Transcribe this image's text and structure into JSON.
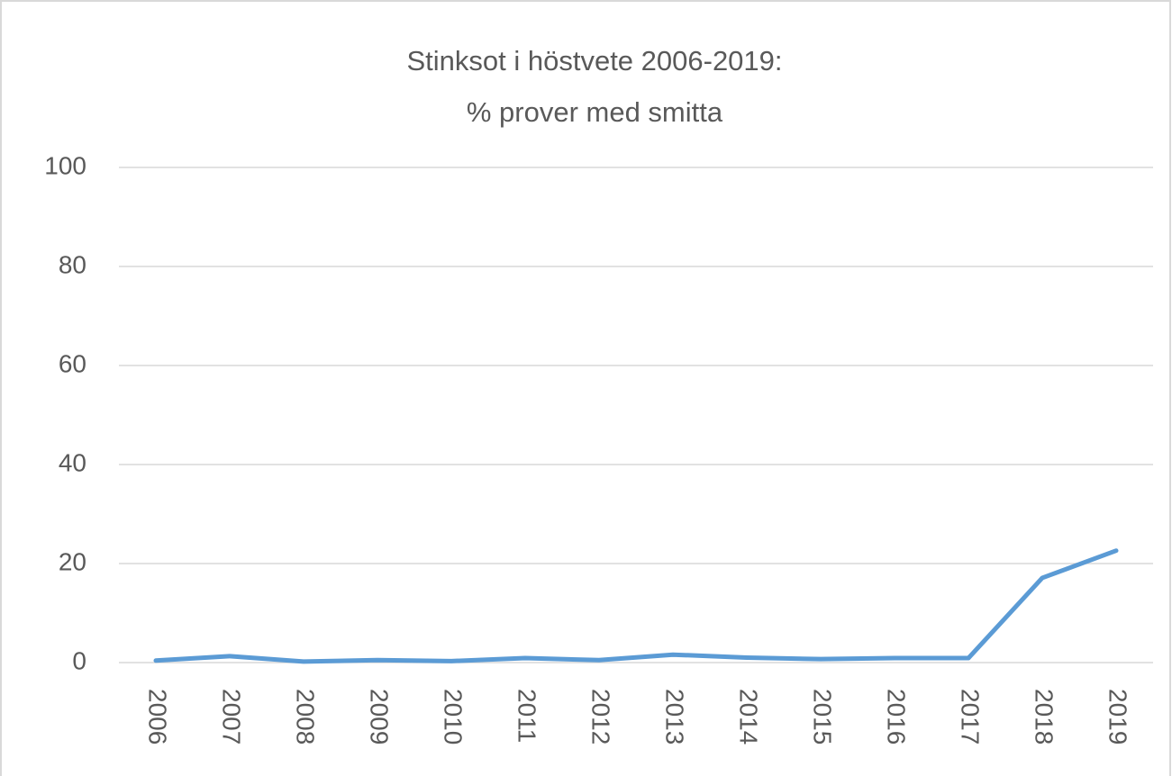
{
  "chart_data": {
    "type": "line",
    "title": "Stinksot i höstvete 2006-2019:",
    "subtitle": "% prover med smitta",
    "categories": [
      "2006",
      "2007",
      "2008",
      "2009",
      "2010",
      "2011",
      "2012",
      "2013",
      "2014",
      "2015",
      "2016",
      "2017",
      "2018",
      "2019"
    ],
    "series": [
      {
        "name": "% prover med smitta",
        "color": "#5b9bd5",
        "values": [
          0.4,
          1.3,
          0.2,
          0.5,
          0.3,
          0.9,
          0.5,
          1.6,
          1.0,
          0.7,
          0.9,
          0.9,
          17.1,
          22.6
        ]
      }
    ],
    "ylim": [
      0,
      100
    ],
    "yticks": [
      0,
      20,
      40,
      60,
      80,
      100
    ],
    "grid": true
  }
}
